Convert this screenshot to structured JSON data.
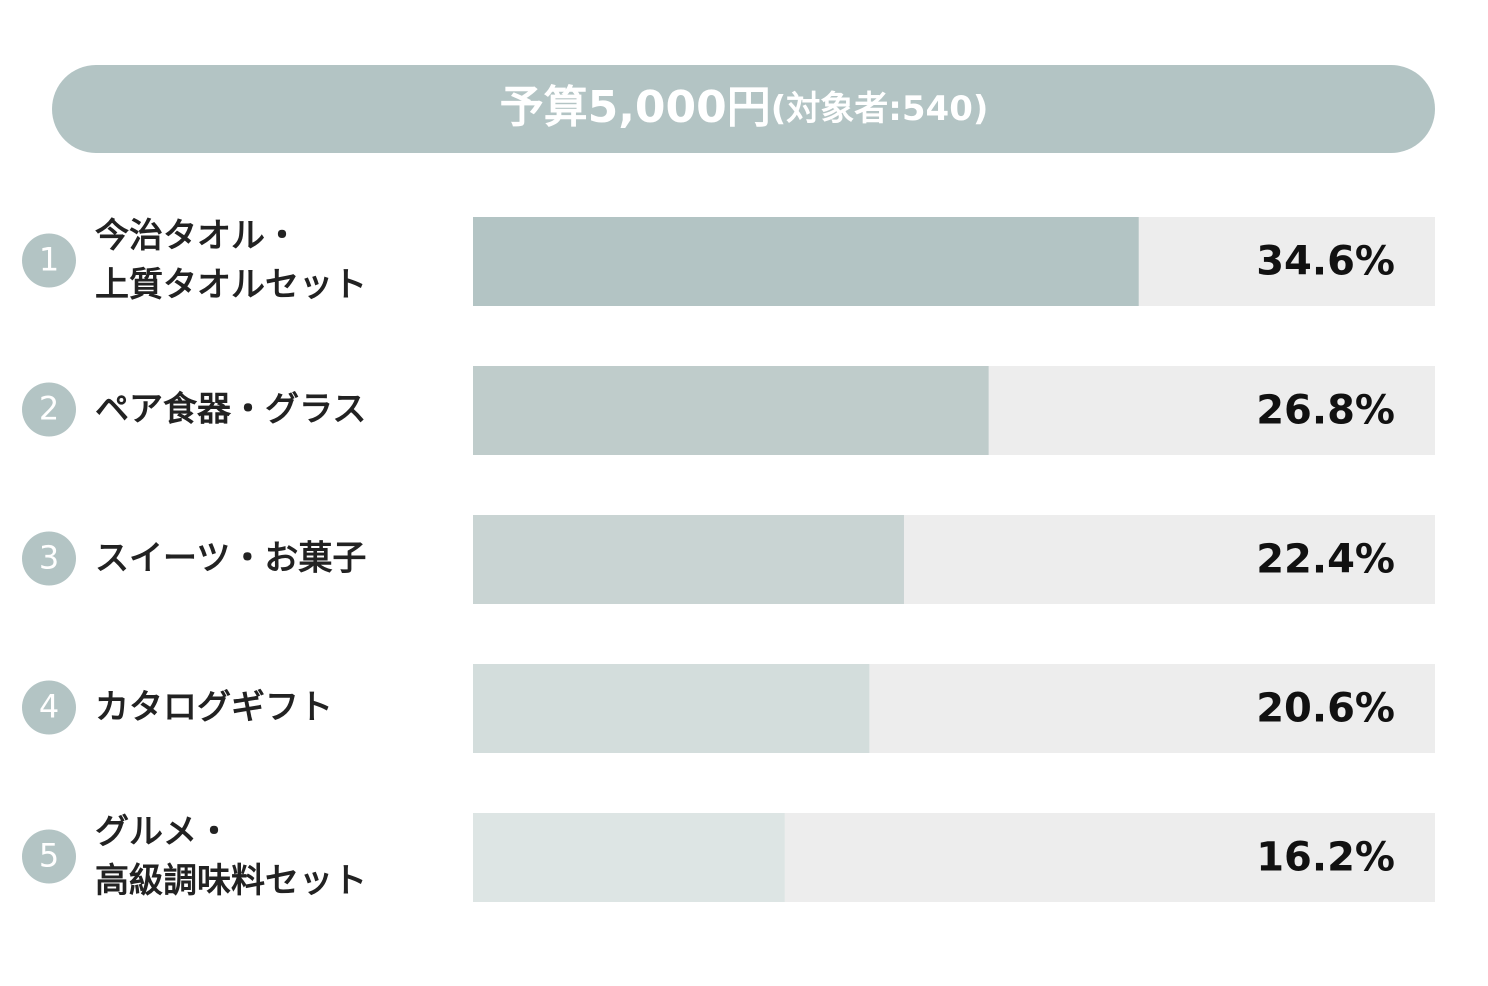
{
  "chart_data": {
    "type": "hbar",
    "title": "予算5,000円",
    "subtitle": "(対象者:540)",
    "ranks": [
      1,
      2,
      3,
      4,
      5
    ],
    "categories": [
      "今治タオル・\n上質タオルセット",
      "ペア食器・グラス",
      "スイーツ・お菓子",
      "カタログギフト",
      "グルメ・\n高級調味料セット"
    ],
    "values": [
      34.6,
      26.8,
      22.4,
      20.6,
      16.2
    ],
    "value_labels": [
      "34.6%",
      "26.8%",
      "22.4%",
      "20.6%",
      "16.2%"
    ],
    "colors": [
      "#b3c4c4",
      "#bfcccb",
      "#c9d4d3",
      "#d3dddc",
      "#dde5e4"
    ],
    "track_color": "#ededed",
    "xlim": [
      0,
      50
    ]
  }
}
